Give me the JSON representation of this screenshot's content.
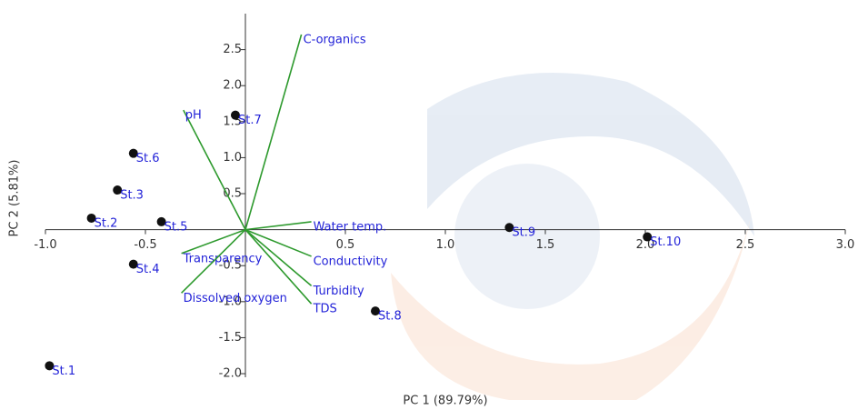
{
  "chart_data": {
    "type": "biplot",
    "x_label": "PC 1 (89.79%)",
    "y_label": "PC 2 (5.81%)",
    "xlim": [
      -1,
      3
    ],
    "ylim": [
      -2.05,
      3.0
    ],
    "xticks": [
      {
        "value": -1,
        "label": "-1.0"
      },
      -0.5,
      0.5,
      {
        "value": 1,
        "label": "1.0"
      },
      1.5,
      {
        "value": 2,
        "label": "2.0"
      },
      2.5,
      {
        "value": 3,
        "label": "3.0"
      }
    ],
    "yticks": [
      2.5,
      {
        "value": 2,
        "label": "2.0"
      },
      1.5,
      {
        "value": 1,
        "label": "1.0"
      },
      0.5,
      -0.5,
      {
        "value": -1,
        "label": "-1.0"
      },
      -1.5,
      {
        "value": -2,
        "label": "-2.0"
      }
    ],
    "points": {
      "color": "#111111",
      "labels": [
        "St.1",
        "St.2",
        "St.3",
        "St.4",
        "St.5",
        "St.6",
        "St.7",
        "St.8",
        "St.9",
        "St.10"
      ],
      "x": [
        -0.98,
        -0.77,
        -0.64,
        -0.56,
        -0.42,
        -0.56,
        -0.05,
        0.65,
        1.32,
        2.01
      ],
      "y": [
        -1.89,
        0.16,
        0.55,
        -0.48,
        0.11,
        1.06,
        1.59,
        -1.13,
        0.03,
        -0.1
      ]
    },
    "loadings": {
      "color": "#2e9a2e",
      "labels": [
        "C-organics",
        "pH",
        "Water temp.",
        "Conductivity",
        "Turbidity",
        "TDS",
        "Transparency",
        "Dissolved oxygen"
      ],
      "x": [
        0.28,
        -0.31,
        0.33,
        0.33,
        0.33,
        0.33,
        -0.32,
        -0.32
      ],
      "y": [
        2.71,
        1.66,
        0.11,
        -0.37,
        -0.78,
        -1.03,
        -0.33,
        -0.88
      ]
    }
  }
}
